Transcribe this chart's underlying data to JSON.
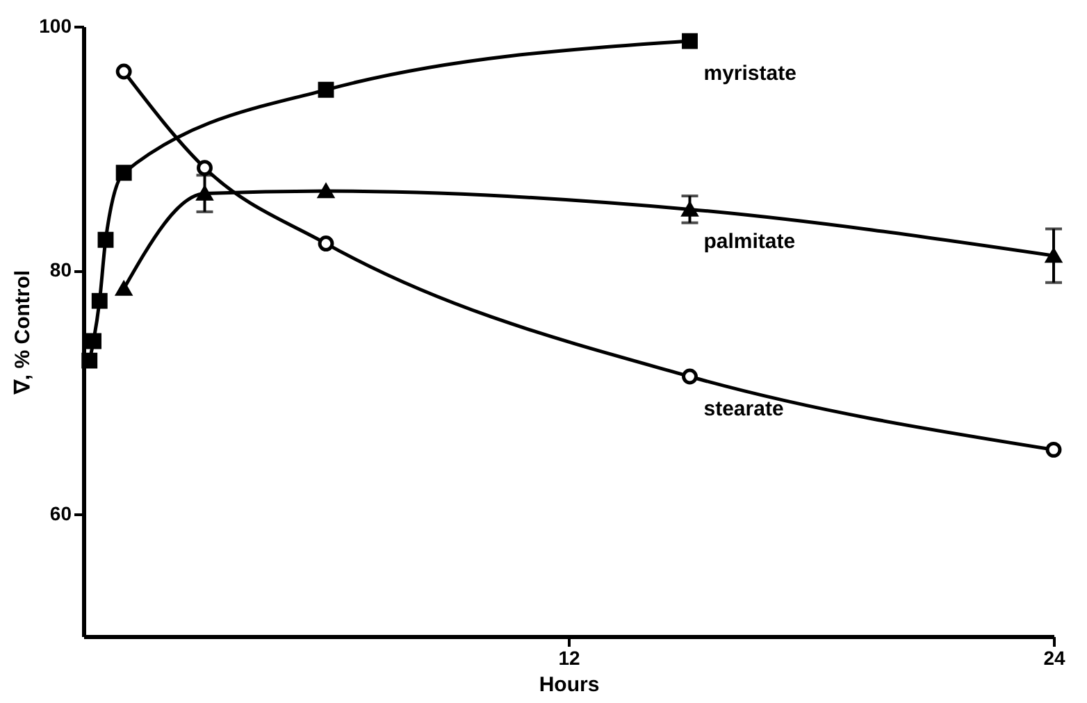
{
  "chart_data": {
    "type": "line",
    "xlabel": "Hours",
    "ylabel": "∇, % Control",
    "xlim": [
      0,
      24
    ],
    "xticks": [
      12,
      24
    ],
    "ylim": [
      50,
      100
    ],
    "yticks": [
      60,
      80,
      100
    ],
    "grid": false,
    "series": [
      {
        "name": "myristate",
        "color": "#000000",
        "marker": "square",
        "x": [
          0.15,
          0.25,
          0.4,
          0.55,
          1,
          6,
          15
        ],
        "values": [
          72.6,
          74.2,
          77.5,
          82.5,
          88,
          94.8,
          98.8
        ]
      },
      {
        "name": "palmitate",
        "color": "#000000",
        "marker": "triangle",
        "x": [
          1,
          3,
          6,
          15,
          24
        ],
        "values": [
          78.5,
          86.3,
          86.5,
          85,
          81.2
        ],
        "errors": [
          null,
          1.5,
          null,
          1.1,
          2.2
        ]
      },
      {
        "name": "stearate",
        "color": "#000000",
        "marker": "circle",
        "x": [
          1,
          3,
          6,
          15,
          24
        ],
        "values": [
          96.3,
          88.4,
          82.2,
          71.3,
          65.3
        ]
      }
    ]
  }
}
